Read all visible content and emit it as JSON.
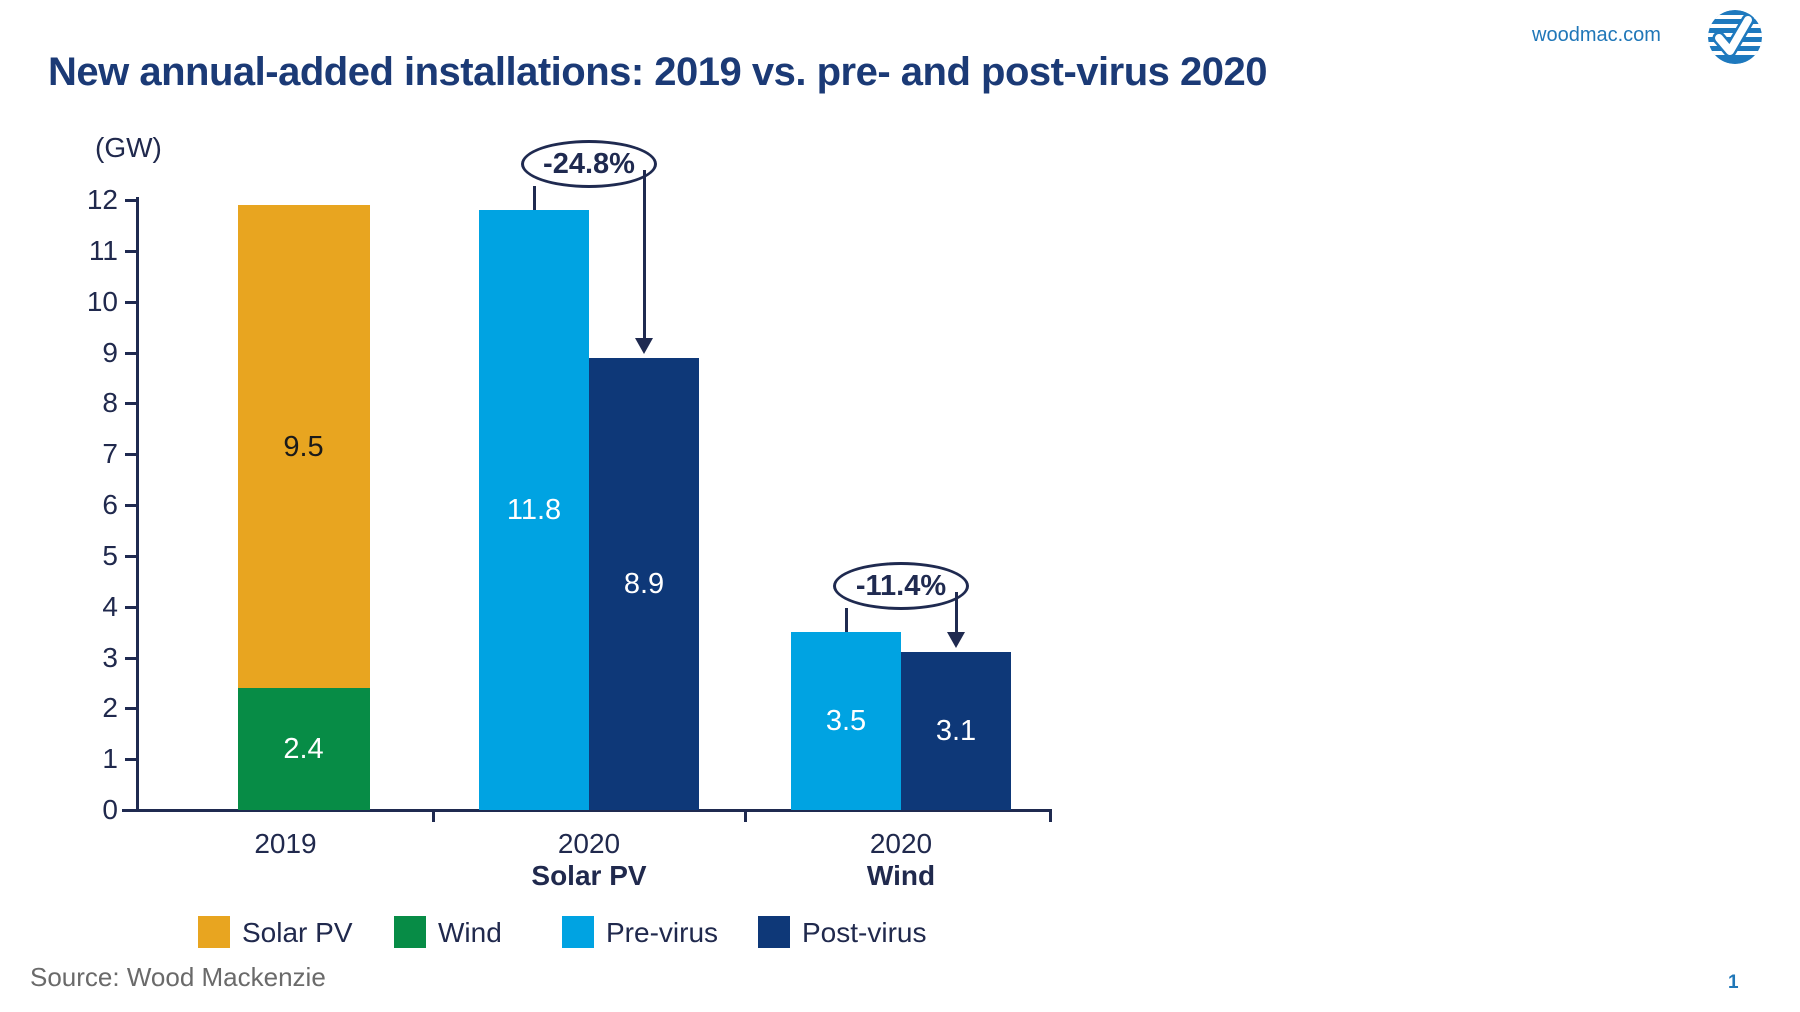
{
  "header": {
    "title": "New annual-added installations: 2019 vs. pre- and post-virus 2020",
    "site": "woodmac.com",
    "logo_icon": "woodmac-globe-check-icon"
  },
  "chart_data": {
    "type": "bar",
    "title": "New annual-added installations: 2019 vs. pre- and post-virus 2020",
    "axis_label": "(GW)",
    "ylabel": "GW",
    "xlabel": "",
    "ylim": [
      0,
      12
    ],
    "yticks": [
      0,
      1,
      2,
      3,
      4,
      5,
      6,
      7,
      8,
      9,
      10,
      11,
      12
    ],
    "grid": false,
    "legend_position": "bottom",
    "colors": {
      "Solar PV": "#E8A520",
      "Wind": "#078C46",
      "Pre-virus": "#00A3E2",
      "Post-virus": "#0E3878"
    },
    "value_label_colors": {
      "Solar PV": "#1A1A1A",
      "Wind": "#FFFFFF",
      "Pre-virus": "#FFFFFF",
      "Post-virus": "#FFFFFF"
    },
    "groups": [
      {
        "label": "2019",
        "sublabel": "",
        "bars": [
          {
            "stack": [
              {
                "series": "Wind",
                "value": 2.4,
                "value_label": "2.4"
              },
              {
                "series": "Solar PV",
                "value": 9.5,
                "value_label": "9.5"
              }
            ]
          }
        ]
      },
      {
        "label": "2020",
        "sublabel": "Solar PV",
        "annotation": "-24.8%",
        "bars": [
          {
            "series": "Pre-virus",
            "value": 11.8,
            "value_label": "11.8"
          },
          {
            "series": "Post-virus",
            "value": 8.9,
            "value_label": "8.9"
          }
        ]
      },
      {
        "label": "2020",
        "sublabel": "Wind",
        "annotation": "-11.4%",
        "bars": [
          {
            "series": "Pre-virus",
            "value": 3.5,
            "value_label": "3.5"
          },
          {
            "series": "Post-virus",
            "value": 3.1,
            "value_label": "3.1"
          }
        ]
      }
    ],
    "legend": [
      {
        "label": "Solar PV"
      },
      {
        "label": "Wind"
      },
      {
        "label": "Pre-virus"
      },
      {
        "label": "Post-virus"
      }
    ]
  },
  "footer": {
    "source": "Source: Wood Mackenzie",
    "page": "1"
  }
}
